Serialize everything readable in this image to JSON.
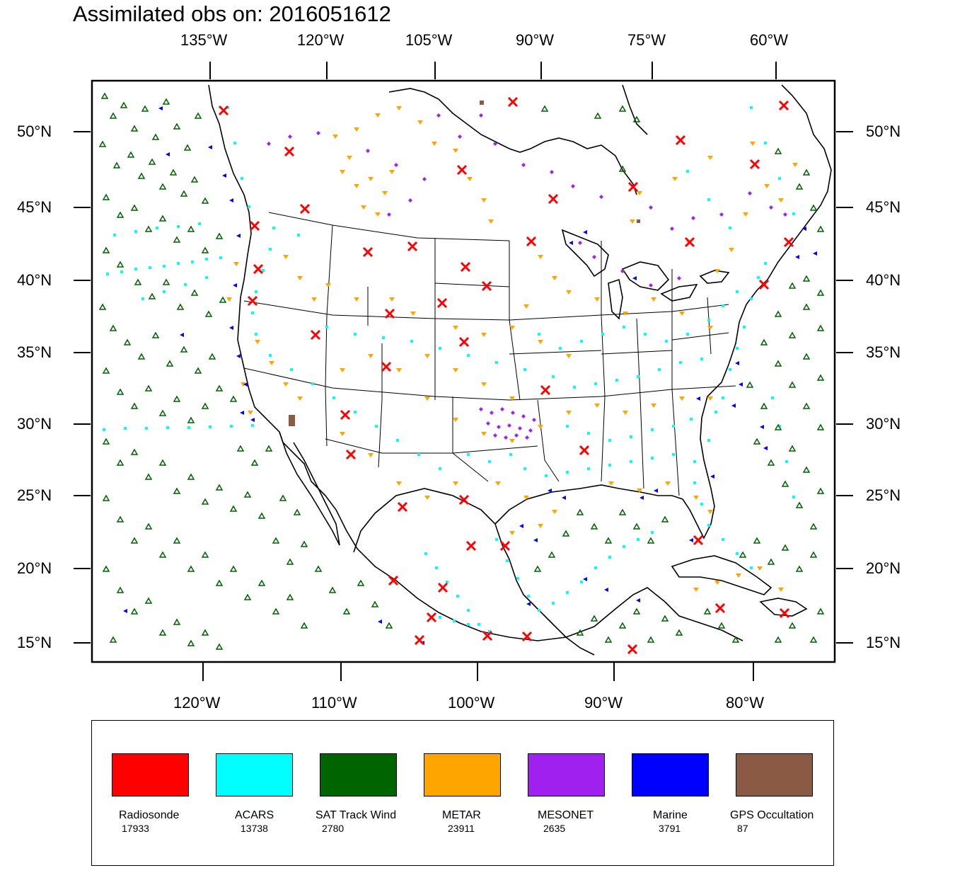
{
  "title": "Assimilated obs on: 2016051612",
  "map": {
    "top_lon_labels": [
      "135°W",
      "120°W",
      "105°W",
      "90°W",
      "75°W",
      "60°W"
    ],
    "bottom_lon_labels": [
      "120°W",
      "110°W",
      "100°W",
      "90°W",
      "80°W"
    ],
    "lat_labels": [
      "50°N",
      "45°N",
      "40°N",
      "35°N",
      "30°N",
      "25°N",
      "20°N",
      "15°N"
    ]
  },
  "legend": {
    "items": [
      {
        "name": "Radiosonde",
        "count": "17933",
        "color": "#ff0000",
        "marker": "x-icon"
      },
      {
        "name": "ACARS",
        "count": "13738",
        "color": "#00ffff",
        "marker": "square-dot-icon"
      },
      {
        "name": "SAT Track Wind",
        "count": "2780",
        "color": "#006400",
        "marker": "triangle-up-icon"
      },
      {
        "name": "METAR",
        "count": "23911",
        "color": "#ffa500",
        "marker": "triangle-down-icon"
      },
      {
        "name": "MESONET",
        "count": "2635",
        "color": "#a020f0",
        "marker": "diamond-icon"
      },
      {
        "name": "Marine",
        "count": "3791",
        "color": "#0000ff",
        "marker": "triangle-left-icon"
      },
      {
        "name": "GPS Occultation",
        "count": "87",
        "color": "#8b5a44",
        "marker": "square-icon"
      }
    ]
  }
}
